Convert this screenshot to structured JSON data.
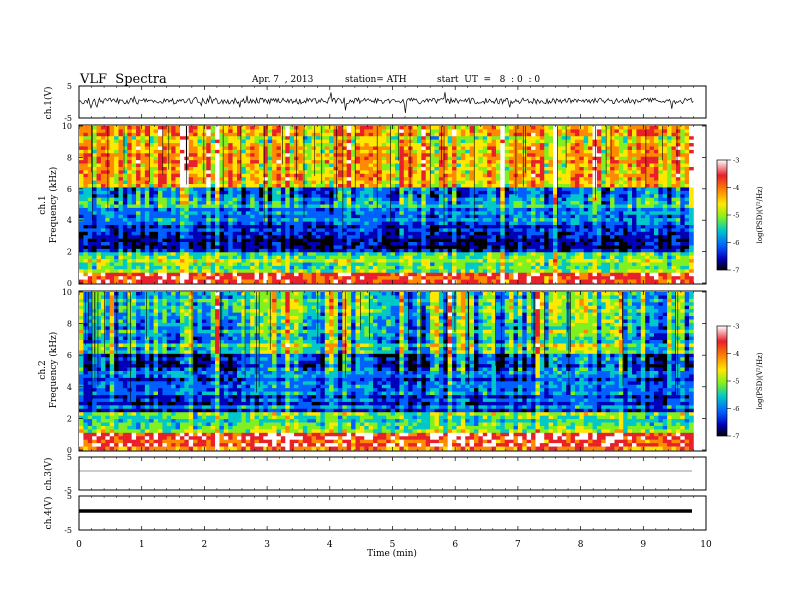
{
  "header": {
    "title": "VLF  Spectra",
    "date": "Apr. 7  , 2013",
    "station": "station= ATH",
    "start": "start  UT  =   8  : 0  : 0"
  },
  "colorscale": {
    "label": "log(PSD)(V²/Hz)",
    "ticks": [
      "-3",
      "-4",
      "-5",
      "-6",
      "-7"
    ],
    "colors": [
      "#ffffff",
      "#e8202a",
      "#ff8a00",
      "#ffe800",
      "#80f020",
      "#00c8c8",
      "#0060ff",
      "#0000b8",
      "#000000"
    ]
  },
  "chart_data": [
    {
      "type": "line",
      "panel": "ch1-waveform",
      "ylabel": "ch.1(V)",
      "ylim": [
        -5,
        5
      ],
      "yticks": [
        "5",
        "-5"
      ],
      "note": "noisy broadband waveform around 0.5 V, amplitude ~±1 V with spikes"
    },
    {
      "type": "heatmap",
      "panel": "ch1-spectrogram",
      "ylabel": "ch.1",
      "ylabel2": "Frequency (kHz)",
      "ylim": [
        0,
        10
      ],
      "yticks": [
        "10",
        "8",
        "6",
        "4",
        "2",
        "0"
      ],
      "xlim": [
        0,
        10
      ],
      "band_levels": [
        {
          "freq_range": [
            0,
            0.6
          ],
          "log_psd": -3.5
        },
        {
          "freq_range": [
            0.6,
            2
          ],
          "log_psd": -5
        },
        {
          "freq_range": [
            2,
            4
          ],
          "log_psd": -6.5
        },
        {
          "freq_range": [
            4,
            6
          ],
          "log_psd": -5.8
        },
        {
          "freq_range": [
            6,
            10
          ],
          "log_psd": -4.5
        }
      ]
    },
    {
      "type": "heatmap",
      "panel": "ch2-spectrogram",
      "ylabel": "ch.2",
      "ylabel2": "Frequency (kHz)",
      "ylim": [
        0,
        10
      ],
      "yticks": [
        "10",
        "8",
        "6",
        "4",
        "2",
        "0"
      ],
      "xlim": [
        0,
        10
      ],
      "band_levels": [
        {
          "freq_range": [
            0,
            1
          ],
          "log_psd": -3.8
        },
        {
          "freq_range": [
            1,
            2.5
          ],
          "log_psd": -5.2
        },
        {
          "freq_range": [
            2.5,
            6
          ],
          "log_psd": -6.3
        },
        {
          "freq_range": [
            6,
            10
          ],
          "log_psd": -5.5
        }
      ]
    },
    {
      "type": "line",
      "panel": "ch3-waveform",
      "ylabel": "ch.3(V)",
      "ylim": [
        -5,
        5
      ],
      "yticks": [
        "5",
        "-5"
      ],
      "note": "flat line near 0 V"
    },
    {
      "type": "line",
      "panel": "ch4-waveform",
      "ylabel": "ch.4(V)",
      "ylim": [
        -5,
        5
      ],
      "yticks": [
        "5",
        "-5"
      ],
      "note": "thick flat line near 0 V"
    }
  ],
  "xaxis": {
    "label": "Time  (min)",
    "ticks": [
      "0",
      "1",
      "2",
      "3",
      "4",
      "5",
      "6",
      "7",
      "8",
      "9",
      "10"
    ],
    "data_end": 9.8
  }
}
